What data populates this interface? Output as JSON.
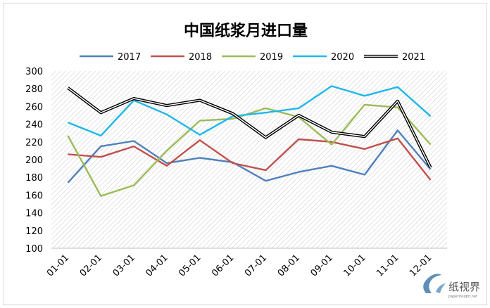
{
  "chart_data": {
    "type": "line",
    "title": "中国纸浆月进口量",
    "xlabel": "",
    "ylabel": "",
    "categories": [
      "01-01",
      "02-01",
      "03-01",
      "04-01",
      "05-01",
      "06-01",
      "07-01",
      "08-01",
      "09-01",
      "10-01",
      "11-01",
      "12-01"
    ],
    "ylim": [
      100,
      300
    ],
    "yticks": [
      100,
      120,
      140,
      160,
      180,
      200,
      220,
      240,
      260,
      280,
      300
    ],
    "grid": "hatched plot background",
    "legend_position": "top",
    "series": [
      {
        "name": "2017",
        "color": "#4f81bd",
        "values": [
          174,
          215,
          221,
          196,
          202,
          197,
          176,
          186,
          193,
          183,
          233,
          189
        ]
      },
      {
        "name": "2018",
        "color": "#c0504d",
        "values": [
          206,
          203,
          215,
          193,
          222,
          196,
          188,
          223,
          220,
          212,
          224,
          177
        ]
      },
      {
        "name": "2019",
        "color": "#9bbb59",
        "values": [
          227,
          159,
          171,
          210,
          244,
          246,
          258,
          248,
          217,
          262,
          259,
          217
        ]
      },
      {
        "name": "2020",
        "color": "#1fb8e8",
        "values": [
          242,
          227,
          267,
          251,
          228,
          249,
          253,
          258,
          283,
          272,
          282,
          249
        ]
      },
      {
        "name": "2021",
        "color": "#000000",
        "double": true,
        "values": [
          281,
          253,
          269,
          261,
          267,
          252,
          225,
          250,
          231,
          226,
          266,
          191
        ]
      }
    ]
  },
  "watermark": {
    "logo_text": "纸视界",
    "site": "paperinsight.net"
  }
}
